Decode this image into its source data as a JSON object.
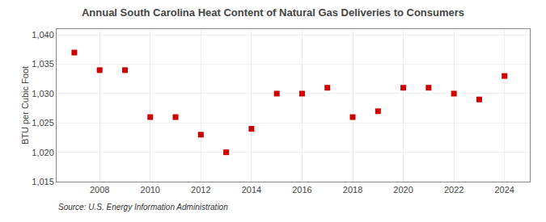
{
  "chart_data": {
    "type": "scatter",
    "title": "Annual South Carolina Heat Content of Natural Gas Deliveries to Consumers",
    "y_label": "BTU per Cubic Foot",
    "source": "Source: U.S. Energy Information Administration",
    "x": [
      2007,
      2008,
      2009,
      2010,
      2011,
      2012,
      2013,
      2014,
      2015,
      2016,
      2017,
      2018,
      2019,
      2020,
      2021,
      2022,
      2023,
      2024
    ],
    "values": [
      1037.0,
      1034.0,
      1034.0,
      1026.0,
      1026.0,
      1023.0,
      1020.0,
      1024.0,
      1030.0,
      1030.0,
      1031.0,
      1026.0,
      1027.0,
      1031.0,
      1031.0,
      1030.0,
      1029.0,
      1033.0
    ],
    "color": "#cc0000",
    "marker": "square",
    "xlim": [
      2006.3,
      2025.0
    ],
    "xticks": [
      2008,
      2010,
      2012,
      2014,
      2016,
      2018,
      2020,
      2022,
      2024
    ],
    "ylim": [
      1015,
      1041
    ],
    "yticks": [
      {
        "value": 1015,
        "label": "1,015"
      },
      {
        "value": 1020,
        "label": "1,020"
      },
      {
        "value": 1025,
        "label": "1,025"
      },
      {
        "value": 1030,
        "label": "1,030"
      },
      {
        "value": 1035,
        "label": "1,035"
      },
      {
        "value": 1040,
        "label": "1,040"
      }
    ],
    "grid": true
  }
}
